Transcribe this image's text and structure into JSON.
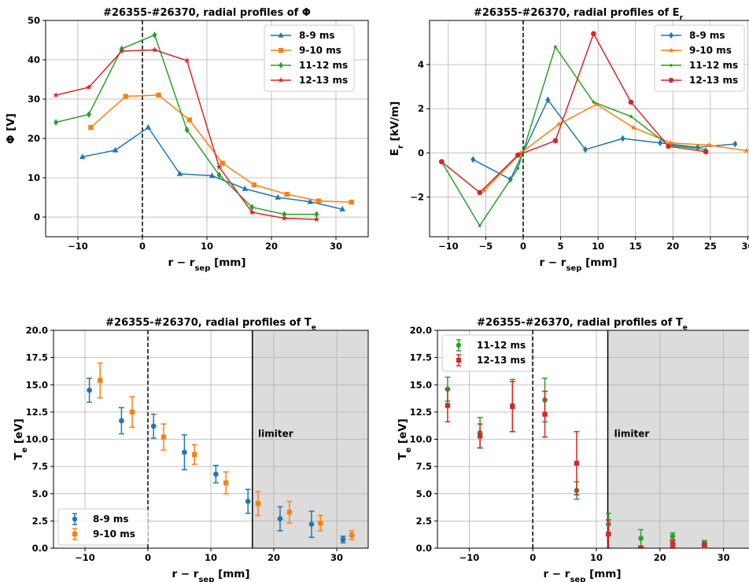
{
  "chart_data": [
    {
      "type": "line",
      "title": "#26355-#26370, radial profiles of Φ",
      "xlabel": "r − r_sep [mm]",
      "ylabel": "Φ [V]",
      "xlim": [
        -15,
        35
      ],
      "ylim": [
        -5,
        50
      ],
      "xticks": [
        -10,
        0,
        10,
        20,
        30
      ],
      "yticks": [
        0,
        10,
        20,
        30,
        40,
        50
      ],
      "grid": true,
      "legend": "top-right",
      "vlines": [
        {
          "x": 0,
          "style": "dashed",
          "color": "#000000"
        }
      ],
      "series": [
        {
          "name": "8-9 ms",
          "color": "#1f77b4",
          "marker": "triangle",
          "x": [
            -9.3,
            -4.2,
            0.9,
            5.8,
            10.8,
            15.9,
            21,
            26,
            31
          ],
          "y": [
            15.3,
            17,
            22.8,
            11,
            10.5,
            7.2,
            5,
            3.9,
            2
          ]
        },
        {
          "name": "9-10 ms",
          "color": "#ff7f0e",
          "marker": "square",
          "x": [
            -8,
            -2.6,
            2.5,
            7.3,
            12.4,
            17.3,
            22.4,
            27.3,
            32.4
          ],
          "y": [
            22.8,
            30.7,
            31,
            24.7,
            13.7,
            8.2,
            5.8,
            4.1,
            3.8
          ]
        },
        {
          "name": "11-12 ms",
          "color": "#2ca02c",
          "marker": "diamond",
          "x": [
            -13.4,
            -8.3,
            -3.2,
            1.9,
            6.9,
            11.9,
            17,
            22,
            27
          ],
          "y": [
            24.1,
            26.1,
            42.8,
            46.3,
            22.2,
            10.7,
            2.5,
            0.7,
            0.7
          ]
        },
        {
          "name": "12-13 ms",
          "color": "#d62728",
          "marker": "star",
          "x": [
            -13.4,
            -8.3,
            -3.2,
            1.9,
            6.9,
            11.9,
            17,
            22,
            27
          ],
          "y": [
            31,
            33,
            42.2,
            42.5,
            39.8,
            12.7,
            1.2,
            -0.3,
            -0.6
          ]
        }
      ]
    },
    {
      "type": "line",
      "title": "#26355-#26370, radial profiles of E",
      "title_sub": "r",
      "xlabel": "r − r_sep [mm]",
      "ylabel": "E_r [kV/m]",
      "xlim": [
        -12.5,
        31
      ],
      "ylim": [
        -3.8,
        6
      ],
      "xticks": [
        -10,
        -5,
        0,
        5,
        10,
        15,
        20,
        25,
        30
      ],
      "yticks": [
        -2,
        0,
        2,
        4
      ],
      "grid": true,
      "legend": "top-right",
      "vlines": [
        {
          "x": 0,
          "style": "dashed",
          "color": "#000000"
        }
      ],
      "series": [
        {
          "name": "8-9 ms",
          "color": "#1f77b4",
          "marker": "diamond",
          "x": [
            -6.7,
            -1.7,
            3.3,
            8.3,
            13.3,
            18.3,
            23.3,
            28.3
          ],
          "y": [
            -0.3,
            -1.2,
            2.4,
            0.15,
            0.65,
            0.45,
            0.25,
            0.4
          ]
        },
        {
          "name": "9-10 ms",
          "color": "#ff7f0e",
          "marker": "star",
          "x": [
            -5.2,
            -0.3,
            4.8,
            9.8,
            14.7,
            19.7,
            24.8,
            29.8
          ],
          "y": [
            -1.7,
            0,
            1.3,
            2.2,
            1.15,
            0.45,
            0.35,
            0.1
          ]
        },
        {
          "name": "11-12 ms",
          "color": "#2ca02c",
          "marker": "dot",
          "x": [
            -10.9,
            -5.8,
            -0.7,
            4.3,
            9.4,
            14.4,
            19.4,
            24.4
          ],
          "y": [
            -0.4,
            -3.3,
            -0.7,
            4.8,
            2.3,
            1.65,
            0.35,
            0.15
          ]
        },
        {
          "name": "12-13 ms",
          "color": "#d62728",
          "marker": "circle",
          "x": [
            -10.9,
            -5.8,
            -0.7,
            4.3,
            9.4,
            14.4,
            19.4,
            24.4
          ],
          "y": [
            -0.4,
            -1.8,
            -0.1,
            0.55,
            5.4,
            2.3,
            0.3,
            0.05
          ]
        }
      ]
    },
    {
      "type": "scatter",
      "title": "#26355-#26370, radial profiles of T",
      "title_sub": "e",
      "xlabel": "r − r_sep [mm]",
      "ylabel": "T_e [eV]",
      "xlim": [
        -15,
        35
      ],
      "ylim": [
        0,
        20
      ],
      "xticks": [
        -10,
        0,
        10,
        20,
        30
      ],
      "yticks": [
        0.0,
        2.5,
        5.0,
        7.5,
        10.0,
        12.5,
        15.0,
        17.5,
        20.0
      ],
      "grid": true,
      "legend": "bottom-left",
      "vlines": [
        {
          "x": 0,
          "style": "dashed",
          "color": "#000000"
        },
        {
          "x": 16.6,
          "style": "solid",
          "color": "#000000"
        }
      ],
      "shade": {
        "x0": 16.6,
        "x1": 35,
        "color": "#dcdcdc"
      },
      "annotation": {
        "text": "limiter",
        "x": 17.5,
        "y": 10.2
      },
      "series": [
        {
          "name": "8-9 ms",
          "color": "#1f77b4",
          "marker": "circle",
          "x": [
            -9.3,
            -4.2,
            0.9,
            5.8,
            10.8,
            15.9,
            21,
            26,
            31
          ],
          "y": [
            14.5,
            11.7,
            11.2,
            8.8,
            6.8,
            4.3,
            2.7,
            2.2,
            0.8
          ],
          "err": [
            1.1,
            1.2,
            1.1,
            1.6,
            0.8,
            1.1,
            1.1,
            1.2,
            0.3
          ]
        },
        {
          "name": "9-10 ms",
          "color": "#ff7f0e",
          "marker": "square",
          "x": [
            -7.6,
            -2.5,
            2.5,
            7.4,
            12.4,
            17.5,
            22.5,
            27.4,
            32.4
          ],
          "y": [
            15.4,
            12.5,
            10.2,
            8.6,
            6,
            4.1,
            3.3,
            2.3,
            1.2
          ],
          "err": [
            1.6,
            1.4,
            1.2,
            0.9,
            1,
            1.1,
            1,
            0.7,
            0.4
          ]
        }
      ]
    },
    {
      "type": "scatter",
      "title": "#26355-#26370, radial profiles of T",
      "title_sub": "e",
      "xlabel": "r − r_sep [mm]",
      "ylabel": "T_e [eV]",
      "xlim": [
        -15,
        35
      ],
      "ylim": [
        0,
        20
      ],
      "xticks": [
        -10,
        0,
        10,
        20,
        30
      ],
      "yticks": [
        0.0,
        2.5,
        5.0,
        7.5,
        10.0,
        12.5,
        15.0,
        17.5,
        20.0
      ],
      "grid": true,
      "legend": "top-left",
      "vlines": [
        {
          "x": 0,
          "style": "dashed",
          "color": "#000000"
        },
        {
          "x": 11.8,
          "style": "solid",
          "color": "#000000"
        }
      ],
      "shade": {
        "x0": 11.8,
        "x1": 35,
        "color": "#dcdcdc"
      },
      "annotation": {
        "text": "limiter",
        "x": 12.8,
        "y": 10.2
      },
      "series": [
        {
          "name": "11-12 ms",
          "color": "#2ca02c",
          "marker": "circle",
          "x": [
            -13.4,
            -8.3,
            -3.2,
            1.9,
            6.9,
            11.9,
            17,
            22,
            27
          ],
          "y": [
            14.6,
            10.6,
            13.1,
            13.6,
            5.3,
            2.2,
            0.9,
            1.1,
            0.5
          ],
          "err": [
            1.1,
            1.4,
            2.4,
            2,
            0.8,
            1,
            0.8,
            0.3,
            0.2
          ]
        },
        {
          "name": "12-13 ms",
          "color": "#d62728",
          "marker": "square",
          "x": [
            -13.4,
            -8.3,
            -3.2,
            1.9,
            6.9,
            11.9,
            17,
            22,
            27
          ],
          "y": [
            13.1,
            10.3,
            13,
            12.3,
            7.8,
            1.3,
            0,
            0.4,
            0.3
          ],
          "err": [
            1.5,
            1.1,
            2.3,
            2.1,
            2.9,
            1.3,
            0.2,
            0.3,
            0.15
          ]
        }
      ]
    }
  ]
}
